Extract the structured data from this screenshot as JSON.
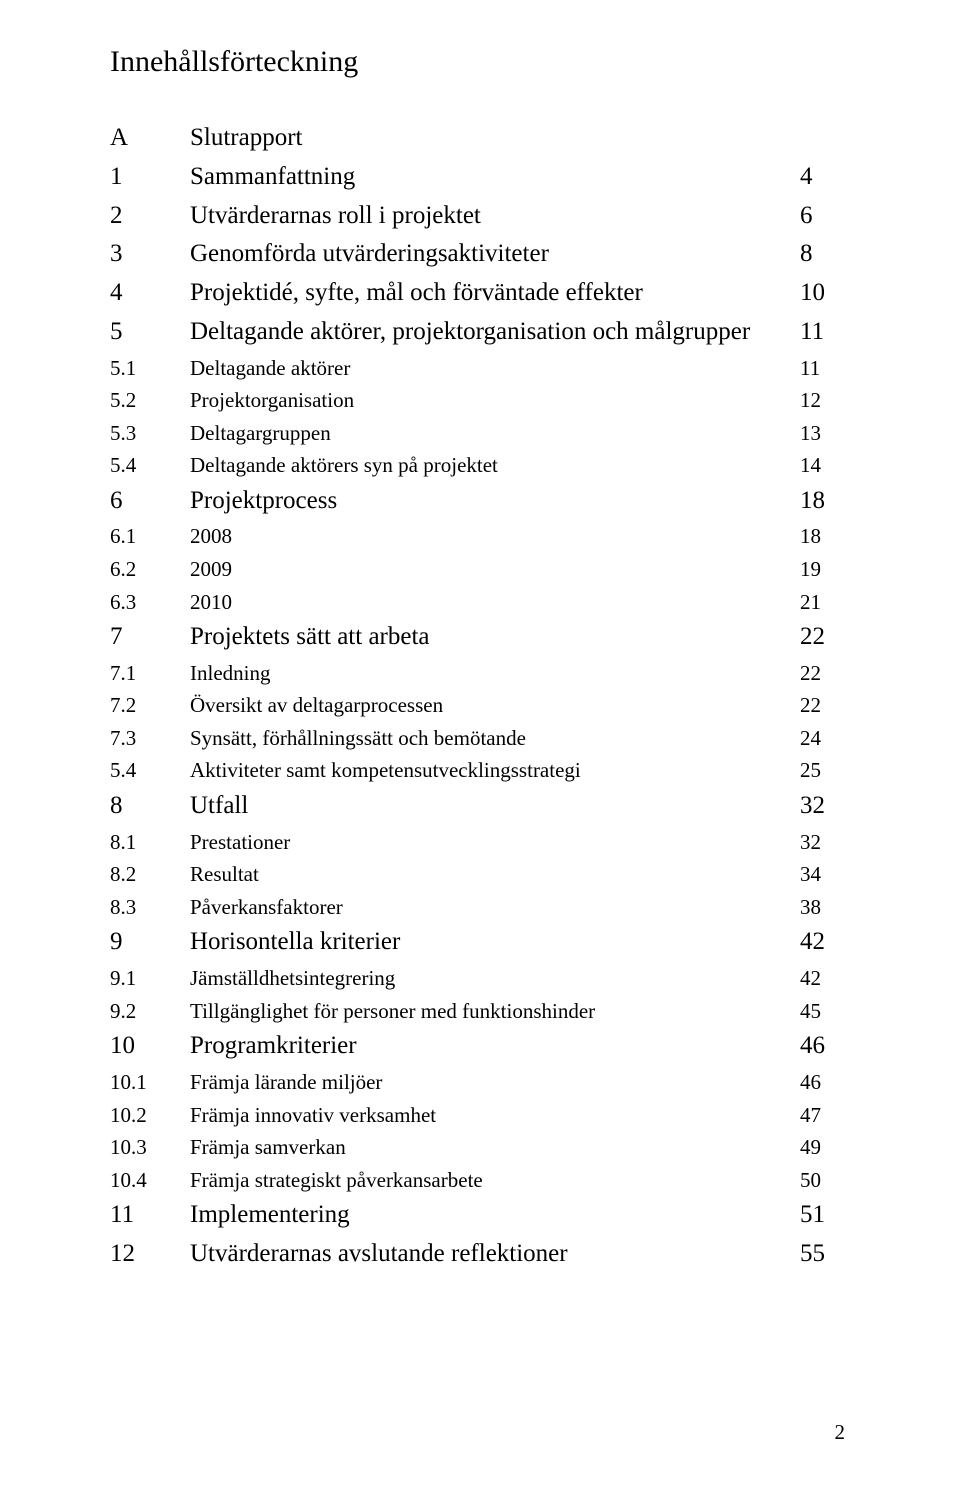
{
  "title": "Innehållsförteckning",
  "entries": [
    {
      "num": "A",
      "label": "Slutrapport",
      "page": "",
      "level": "section"
    },
    {
      "num": "1",
      "label": "Sammanfattning",
      "page": "4",
      "level": "section"
    },
    {
      "num": "2",
      "label": "Utvärderarnas roll i projektet",
      "page": "6",
      "level": "section"
    },
    {
      "num": "3",
      "label": "Genomförda utvärderingsaktiviteter",
      "page": "8",
      "level": "section"
    },
    {
      "num": "4",
      "label": "Projektidé, syfte, mål och förväntade effekter",
      "page": "10",
      "level": "section"
    },
    {
      "num": "5",
      "label": "Deltagande aktörer, projektorganisation och målgrupper",
      "page": "11",
      "level": "section"
    },
    {
      "num": "5.1",
      "label": "Deltagande aktörer",
      "page": "11",
      "level": "subsection"
    },
    {
      "num": "5.2",
      "label": "Projektorganisation",
      "page": "12",
      "level": "subsection"
    },
    {
      "num": "5.3",
      "label": "Deltagargruppen",
      "page": "13",
      "level": "subsection"
    },
    {
      "num": "5.4",
      "label": "Deltagande aktörers syn på projektet",
      "page": "14",
      "level": "subsection"
    },
    {
      "num": "6",
      "label": "Projektprocess",
      "page": "18",
      "level": "section"
    },
    {
      "num": "6.1",
      "label": "2008",
      "page": "18",
      "level": "subsection"
    },
    {
      "num": "6.2",
      "label": "2009",
      "page": "19",
      "level": "subsection"
    },
    {
      "num": "6.3",
      "label": "2010",
      "page": "21",
      "level": "subsection"
    },
    {
      "num": "7",
      "label": "Projektets sätt att arbeta",
      "page": "22",
      "level": "section"
    },
    {
      "num": "7.1",
      "label": "Inledning",
      "page": "22",
      "level": "subsection"
    },
    {
      "num": "7.2",
      "label": "Översikt av deltagarprocessen",
      "page": "22",
      "level": "subsection"
    },
    {
      "num": "7.3",
      "label": "Synsätt, förhållningssätt och bemötande",
      "page": "24",
      "level": "subsection"
    },
    {
      "num": "5.4",
      "label": "Aktiviteter samt kompetensutvecklingsstrategi",
      "page": "25",
      "level": "subsection"
    },
    {
      "num": "8",
      "label": "Utfall",
      "page": "32",
      "level": "section"
    },
    {
      "num": "8.1",
      "label": "Prestationer",
      "page": "32",
      "level": "subsection"
    },
    {
      "num": "8.2",
      "label": "Resultat",
      "page": "34",
      "level": "subsection"
    },
    {
      "num": "8.3",
      "label": "Påverkansfaktorer",
      "page": "38",
      "level": "subsection"
    },
    {
      "num": "9",
      "label": "Horisontella kriterier",
      "page": "42",
      "level": "section"
    },
    {
      "num": "9.1",
      "label": "Jämställdhetsintegrering",
      "page": "42",
      "level": "subsection"
    },
    {
      "num": "9.2",
      "label": "Tillgänglighet för personer med funktionshinder",
      "page": "45",
      "level": "subsection"
    },
    {
      "num": "10",
      "label": "Programkriterier",
      "page": "46",
      "level": "section"
    },
    {
      "num": "10.1",
      "label": "Främja lärande miljöer",
      "page": "46",
      "level": "subsection"
    },
    {
      "num": "10.2",
      "label": "Främja innovativ verksamhet",
      "page": "47",
      "level": "subsection"
    },
    {
      "num": "10.3",
      "label": "Främja samverkan",
      "page": "49",
      "level": "subsection"
    },
    {
      "num": "10.4",
      "label": "Främja strategiskt påverkansarbete",
      "page": "50",
      "level": "subsection"
    },
    {
      "num": "11",
      "label": "Implementering",
      "page": "51",
      "level": "section"
    },
    {
      "num": "12",
      "label": "Utvärderarnas avslutande reflektioner",
      "page": "55",
      "level": "section"
    }
  ],
  "footer_page": "2"
}
